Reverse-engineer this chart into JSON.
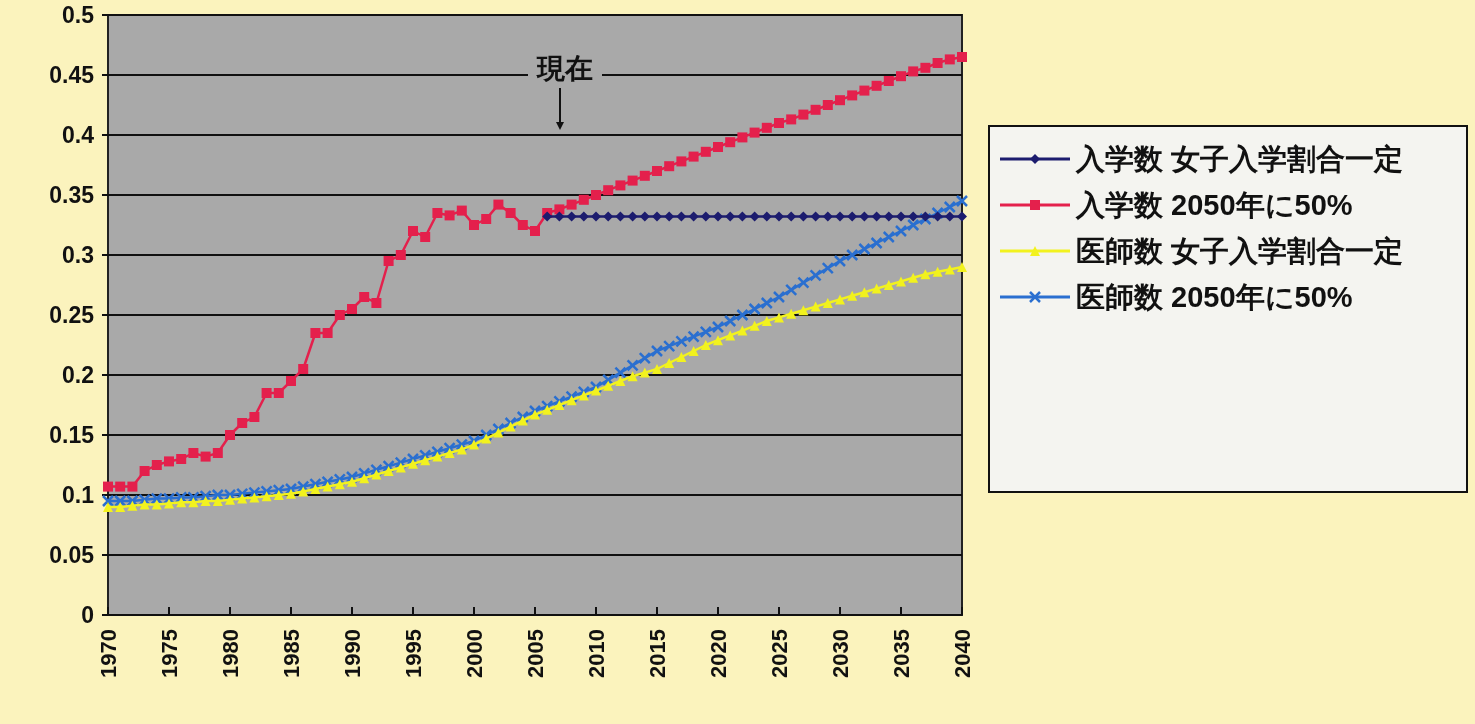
{
  "chart_data": {
    "type": "line",
    "x": [
      1970,
      1971,
      1972,
      1973,
      1974,
      1975,
      1976,
      1977,
      1978,
      1979,
      1980,
      1981,
      1982,
      1983,
      1984,
      1985,
      1986,
      1987,
      1988,
      1989,
      1990,
      1991,
      1992,
      1993,
      1994,
      1995,
      1996,
      1997,
      1998,
      1999,
      2000,
      2001,
      2002,
      2003,
      2004,
      2005,
      2006,
      2007,
      2008,
      2009,
      2010,
      2011,
      2012,
      2013,
      2014,
      2015,
      2016,
      2017,
      2018,
      2019,
      2020,
      2021,
      2022,
      2023,
      2024,
      2025,
      2026,
      2027,
      2028,
      2029,
      2030,
      2031,
      2032,
      2033,
      2034,
      2035,
      2036,
      2037,
      2038,
      2039,
      2040
    ],
    "series": [
      {
        "name": "入学数 女子入学割合一定",
        "color": "#1c1c6e",
        "marker": "diamond",
        "values": [
          null,
          null,
          null,
          null,
          null,
          null,
          null,
          null,
          null,
          null,
          null,
          null,
          null,
          null,
          null,
          null,
          null,
          null,
          null,
          null,
          null,
          null,
          null,
          null,
          null,
          null,
          null,
          null,
          null,
          null,
          null,
          null,
          null,
          null,
          null,
          null,
          0.332,
          0.332,
          0.332,
          0.332,
          0.332,
          0.332,
          0.332,
          0.332,
          0.332,
          0.332,
          0.332,
          0.332,
          0.332,
          0.332,
          0.332,
          0.332,
          0.332,
          0.332,
          0.332,
          0.332,
          0.332,
          0.332,
          0.332,
          0.332,
          0.332,
          0.332,
          0.332,
          0.332,
          0.332,
          0.332,
          0.332,
          0.332,
          0.332,
          0.332,
          0.332
        ]
      },
      {
        "name": "入学数 2050年に50%",
        "color": "#e4204c",
        "marker": "square",
        "values": [
          0.107,
          0.107,
          0.107,
          0.12,
          0.125,
          0.128,
          0.13,
          0.135,
          0.132,
          0.135,
          0.15,
          0.16,
          0.165,
          0.185,
          0.185,
          0.195,
          0.205,
          0.235,
          0.235,
          0.25,
          0.255,
          0.265,
          0.26,
          0.295,
          0.3,
          0.32,
          0.315,
          0.335,
          0.333,
          0.337,
          0.325,
          0.33,
          0.342,
          0.335,
          0.325,
          0.32,
          0.335,
          0.338,
          0.342,
          0.346,
          0.35,
          0.354,
          0.358,
          0.362,
          0.366,
          0.37,
          0.374,
          0.378,
          0.382,
          0.386,
          0.39,
          0.394,
          0.398,
          0.402,
          0.406,
          0.41,
          0.413,
          0.417,
          0.421,
          0.425,
          0.429,
          0.433,
          0.437,
          0.441,
          0.445,
          0.449,
          0.453,
          0.456,
          0.46,
          0.463,
          0.465
        ]
      },
      {
        "name": "医師数 女子入学割合一定",
        "color": "#f2f21e",
        "marker": "triangle",
        "values": [
          0.09,
          0.09,
          0.091,
          0.092,
          0.092,
          0.093,
          0.094,
          0.094,
          0.095,
          0.095,
          0.096,
          0.097,
          0.098,
          0.099,
          0.1,
          0.101,
          0.103,
          0.105,
          0.107,
          0.109,
          0.111,
          0.114,
          0.117,
          0.12,
          0.123,
          0.126,
          0.129,
          0.132,
          0.135,
          0.138,
          0.142,
          0.147,
          0.152,
          0.157,
          0.162,
          0.167,
          0.171,
          0.175,
          0.179,
          0.183,
          0.187,
          0.191,
          0.195,
          0.199,
          0.202,
          0.205,
          0.21,
          0.215,
          0.22,
          0.225,
          0.229,
          0.233,
          0.237,
          0.241,
          0.245,
          0.248,
          0.251,
          0.254,
          0.257,
          0.26,
          0.263,
          0.266,
          0.269,
          0.272,
          0.275,
          0.278,
          0.281,
          0.284,
          0.286,
          0.288,
          0.29
        ]
      },
      {
        "name": "医師数 2050年に50%",
        "color": "#2a6fd0",
        "marker": "cross",
        "values": [
          0.095,
          0.095,
          0.095,
          0.096,
          0.097,
          0.097,
          0.098,
          0.098,
          0.099,
          0.1,
          0.1,
          0.101,
          0.102,
          0.103,
          0.104,
          0.105,
          0.107,
          0.109,
          0.111,
          0.113,
          0.115,
          0.118,
          0.121,
          0.124,
          0.127,
          0.13,
          0.133,
          0.136,
          0.139,
          0.142,
          0.145,
          0.15,
          0.155,
          0.16,
          0.165,
          0.17,
          0.174,
          0.178,
          0.182,
          0.186,
          0.19,
          0.196,
          0.202,
          0.208,
          0.214,
          0.22,
          0.224,
          0.228,
          0.232,
          0.236,
          0.24,
          0.245,
          0.25,
          0.255,
          0.26,
          0.265,
          0.271,
          0.277,
          0.283,
          0.289,
          0.295,
          0.3,
          0.305,
          0.31,
          0.315,
          0.32,
          0.325,
          0.33,
          0.335,
          0.34,
          0.345
        ]
      }
    ],
    "xlim": [
      1970,
      2040
    ],
    "xticks": [
      1970,
      1975,
      1980,
      1985,
      1990,
      1995,
      2000,
      2005,
      2010,
      2015,
      2020,
      2025,
      2030,
      2035,
      2040
    ],
    "ylim": [
      0,
      0.5
    ],
    "yticks": [
      0,
      0.05,
      0.1,
      0.15,
      0.2,
      0.25,
      0.3,
      0.35,
      0.4,
      0.45,
      0.5
    ],
    "grid": "y",
    "legend": "right",
    "annotations": [
      "現在"
    ]
  }
}
